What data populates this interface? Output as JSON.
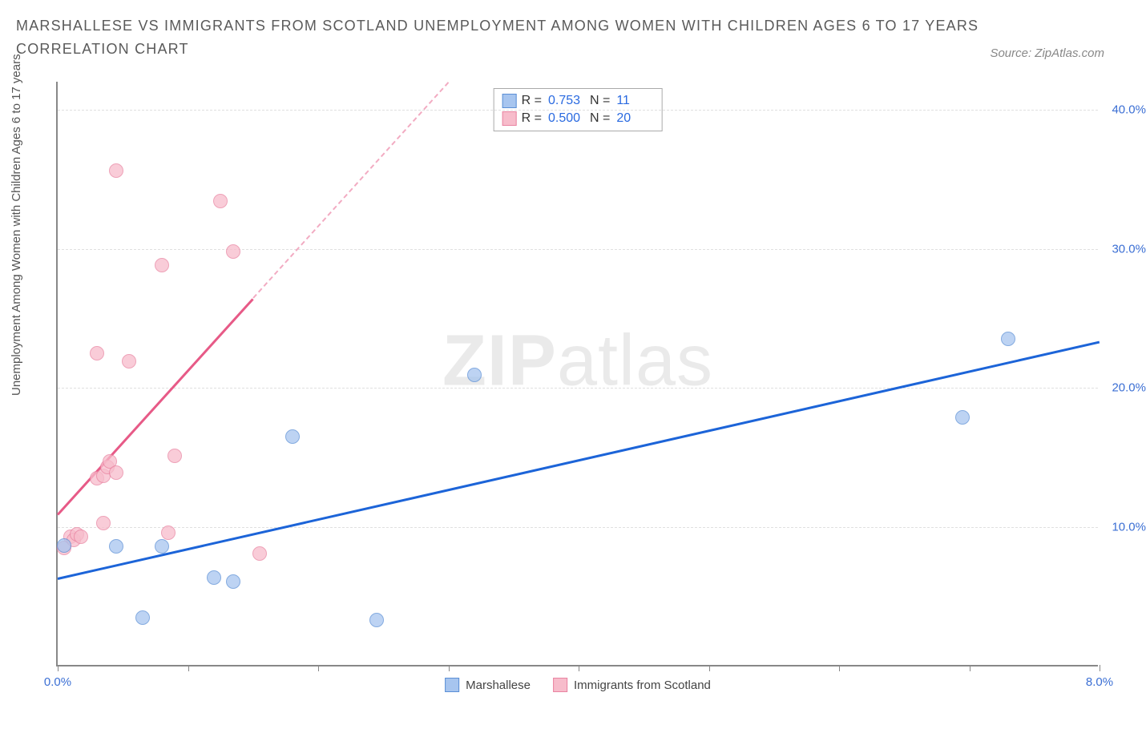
{
  "title_line1": "MARSHALLESE VS IMMIGRANTS FROM SCOTLAND UNEMPLOYMENT AMONG WOMEN WITH CHILDREN AGES 6 TO 17 YEARS",
  "title_line2": "CORRELATION CHART",
  "source": "Source: ZipAtlas.com",
  "y_axis_label": "Unemployment Among Women with Children Ages 6 to 17 years",
  "watermark_bold": "ZIP",
  "watermark_light": "atlas",
  "chart": {
    "type": "scatter",
    "xlim": [
      0,
      8
    ],
    "ylim": [
      0,
      42
    ],
    "x_ticks": [
      0,
      1,
      2,
      3,
      4,
      5,
      6,
      7,
      8
    ],
    "x_tick_labels": {
      "0": "0.0%",
      "8": "8.0%"
    },
    "y_ticks": [
      10,
      20,
      30,
      40
    ],
    "y_tick_labels": {
      "10": "10.0%",
      "20": "20.0%",
      "30": "30.0%",
      "40": "40.0%"
    },
    "background_color": "#ffffff",
    "grid_color": "#e0e0e0",
    "axis_color": "#888888",
    "tick_label_color": "#3b6fd4"
  },
  "series": {
    "marshallese": {
      "label": "Marshallese",
      "fill": "#a7c5ef",
      "stroke": "#5b8fd6",
      "line_color": "#1c64d8",
      "points": [
        [
          0.05,
          8.6
        ],
        [
          0.45,
          8.5
        ],
        [
          0.8,
          8.5
        ],
        [
          0.65,
          3.4
        ],
        [
          1.2,
          6.3
        ],
        [
          1.35,
          6.0
        ],
        [
          1.8,
          16.4
        ],
        [
          2.45,
          3.2
        ],
        [
          3.2,
          20.8
        ],
        [
          6.95,
          17.8
        ],
        [
          7.3,
          23.4
        ]
      ],
      "trend": {
        "x1": 0,
        "y1": 6.4,
        "x2": 8.0,
        "y2": 23.4
      }
    },
    "scotland": {
      "label": "Immigrants from Scotland",
      "fill": "#f7bccb",
      "stroke": "#e983a1",
      "line_color": "#e75a87",
      "points": [
        [
          0.05,
          8.4
        ],
        [
          0.1,
          9.2
        ],
        [
          0.12,
          9.0
        ],
        [
          0.15,
          9.4
        ],
        [
          0.18,
          9.2
        ],
        [
          0.3,
          13.4
        ],
        [
          0.35,
          13.6
        ],
        [
          0.38,
          14.2
        ],
        [
          0.4,
          14.6
        ],
        [
          0.35,
          10.2
        ],
        [
          0.45,
          13.8
        ],
        [
          0.3,
          22.4
        ],
        [
          0.55,
          21.8
        ],
        [
          0.9,
          15.0
        ],
        [
          0.85,
          9.5
        ],
        [
          1.55,
          8.0
        ],
        [
          0.45,
          35.5
        ],
        [
          0.8,
          28.7
        ],
        [
          1.25,
          33.3
        ],
        [
          1.35,
          29.7
        ]
      ],
      "trend_solid": {
        "x1": 0,
        "y1": 11.0,
        "x2": 1.5,
        "y2": 26.5
      },
      "trend_dash": {
        "x1": 1.5,
        "y1": 26.5,
        "x2": 3.0,
        "y2": 42.0
      }
    }
  },
  "stats": [
    {
      "series": "marshallese",
      "R": "0.753",
      "N": "11"
    },
    {
      "series": "scotland",
      "R": "0.500",
      "N": "20"
    }
  ],
  "labels": {
    "R_prefix": "R =",
    "N_prefix": "N ="
  }
}
